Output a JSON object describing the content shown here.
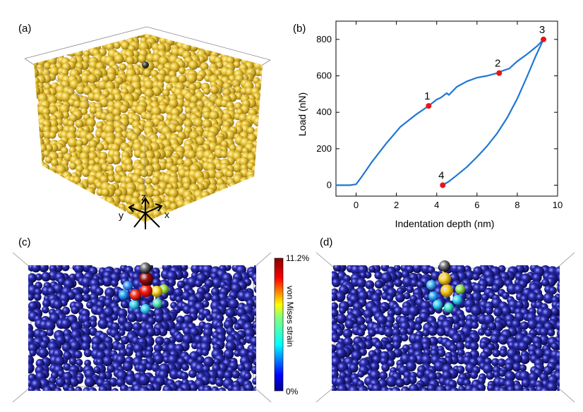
{
  "panels": {
    "a": {
      "label": "(a)",
      "axes": {
        "x": "x",
        "y": "y",
        "z": "z"
      }
    },
    "b": {
      "label": "(b)"
    },
    "c": {
      "label": "(c)"
    },
    "d": {
      "label": "(d)"
    }
  },
  "colorbar": {
    "max_label": "11.2%",
    "min_label": "0%",
    "title": "von Mises strain"
  },
  "chart_data": {
    "type": "line",
    "xlabel": "Indentation depth (nm)",
    "ylabel": "Load (nN)",
    "xlim": [
      -1,
      10
    ],
    "ylim": [
      -60,
      900
    ],
    "xticks": [
      0,
      2,
      4,
      6,
      8,
      10
    ],
    "yticks": [
      0,
      200,
      400,
      600,
      800
    ],
    "grid": false,
    "series": [
      {
        "color": "#1f77d4",
        "x": [
          -1,
          -0.3,
          0,
          0.3,
          0.8,
          1.5,
          2.2,
          3.0,
          3.6,
          4.0,
          4.2,
          4.5,
          4.6,
          5.0,
          5.5,
          6.0,
          6.5,
          7.0,
          7.2,
          7.6,
          8.0,
          8.5,
          9.0,
          9.3,
          8.9,
          8.5,
          8.0,
          7.5,
          7.0,
          6.5,
          6.0,
          5.5,
          5.0,
          4.6,
          4.3
        ],
        "y": [
          0,
          0,
          5,
          50,
          130,
          230,
          320,
          390,
          435,
          470,
          480,
          505,
          495,
          540,
          570,
          590,
          600,
          615,
          625,
          640,
          680,
          720,
          765,
          800,
          705,
          600,
          475,
          370,
          285,
          215,
          155,
          100,
          55,
          20,
          0
        ]
      }
    ],
    "points": [
      {
        "label": "1",
        "x": 3.6,
        "y": 435
      },
      {
        "label": "2",
        "x": 7.1,
        "y": 615
      },
      {
        "label": "3",
        "x": 9.3,
        "y": 800
      },
      {
        "label": "4",
        "x": 4.3,
        "y": 0
      }
    ],
    "point_color": "#e8141b"
  }
}
